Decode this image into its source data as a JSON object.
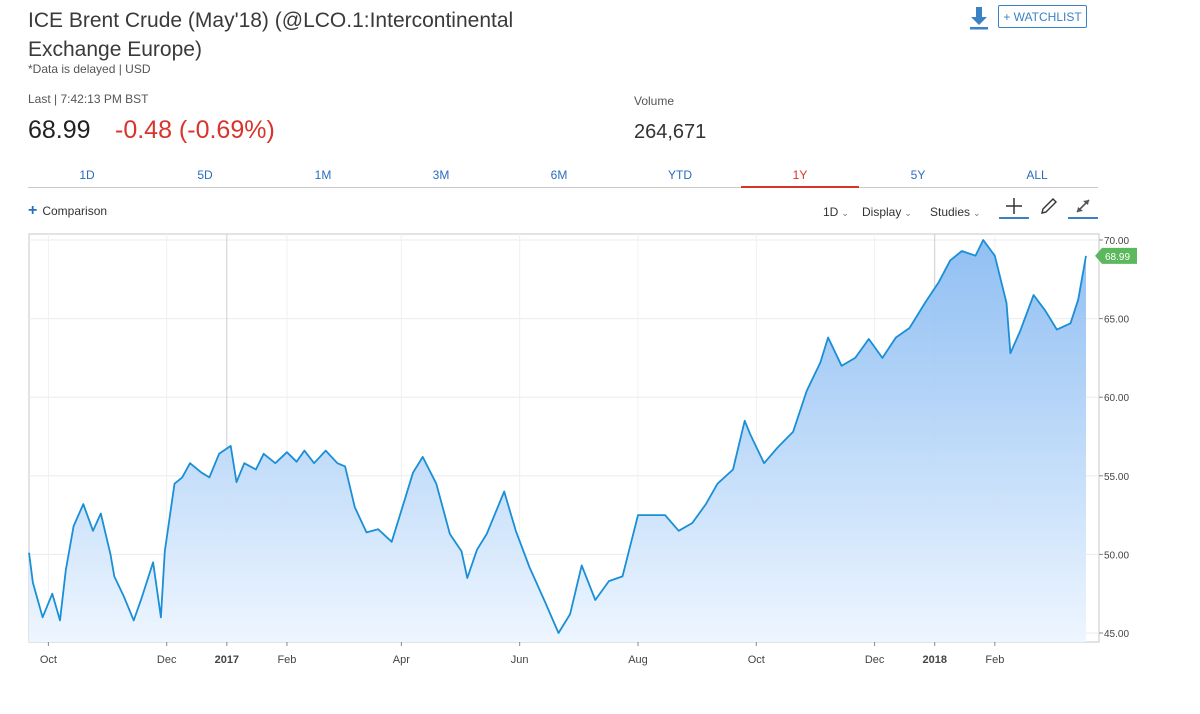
{
  "header": {
    "title": "ICE Brent Crude (May'18) (@LCO.1:Intercontinental Exchange Europe)",
    "delayed_note": "*Data is delayed | USD",
    "last_label": "Last | 7:42:13 PM BST",
    "last_price": "68.99",
    "change": "-0.48 (-0.69%)",
    "volume_label": "Volume",
    "volume_value": "264,671",
    "watchlist_label": "+ WATCHLIST",
    "download_icon": "download-arrow-icon"
  },
  "tabs": [
    {
      "label": "1D",
      "active": false
    },
    {
      "label": "5D",
      "active": false
    },
    {
      "label": "1M",
      "active": false
    },
    {
      "label": "3M",
      "active": false
    },
    {
      "label": "6M",
      "active": false
    },
    {
      "label": "YTD",
      "active": false
    },
    {
      "label": "1Y",
      "active": true
    },
    {
      "label": "5Y",
      "active": false
    },
    {
      "label": "ALL",
      "active": false
    }
  ],
  "toolbar": {
    "comparison_label": "Comparison",
    "interval_label": "1D",
    "display_label": "Display",
    "studies_label": "Studies",
    "icons": [
      "crosshair-icon",
      "pencil-icon",
      "expand-icon"
    ]
  },
  "colors": {
    "line": "#1a8fd6",
    "fill_top": "#8bbcf2",
    "fill_bottom": "#eef6ff",
    "negative": "#d9342b",
    "accent": "#2a6ebb",
    "price_tag": "#5cb85c"
  },
  "chart_data": {
    "type": "area",
    "series": [
      {
        "x": [
          "2016-09-21",
          "2016-09-23",
          "2016-09-28",
          "2016-10-03",
          "2016-10-07",
          "2016-10-10",
          "2016-10-14",
          "2016-10-19",
          "2016-10-24",
          "2016-10-28",
          "2016-11-02",
          "2016-11-04",
          "2016-11-09",
          "2016-11-14",
          "2016-11-18",
          "2016-11-24",
          "2016-11-28",
          "2016-11-30",
          "2016-12-05",
          "2016-12-09",
          "2016-12-13",
          "2016-12-19",
          "2016-12-23",
          "2016-12-28",
          "2017-01-03",
          "2017-01-06",
          "2017-01-10",
          "2017-01-16",
          "2017-01-20",
          "2017-01-26",
          "2017-02-01",
          "2017-02-06",
          "2017-02-10",
          "2017-02-15",
          "2017-02-21",
          "2017-02-27",
          "2017-03-03",
          "2017-03-08",
          "2017-03-14",
          "2017-03-20",
          "2017-03-27",
          "2017-04-03",
          "2017-04-07",
          "2017-04-12",
          "2017-04-19",
          "2017-04-26",
          "2017-05-02",
          "2017-05-05",
          "2017-05-10",
          "2017-05-15",
          "2017-05-24",
          "2017-05-30",
          "2017-06-06",
          "2017-06-14",
          "2017-06-21",
          "2017-06-27",
          "2017-07-03",
          "2017-07-10",
          "2017-07-17",
          "2017-07-24",
          "2017-08-01",
          "2017-08-07",
          "2017-08-15",
          "2017-08-22",
          "2017-08-29",
          "2017-09-05",
          "2017-09-11",
          "2017-09-19",
          "2017-09-25",
          "2017-09-28",
          "2017-10-05",
          "2017-10-12",
          "2017-10-20",
          "2017-10-27",
          "2017-11-03",
          "2017-11-07",
          "2017-11-14",
          "2017-11-21",
          "2017-11-28",
          "2017-12-05",
          "2017-12-12",
          "2017-12-19",
          "2017-12-27",
          "2018-01-03",
          "2018-01-09",
          "2018-01-15",
          "2018-01-22",
          "2018-01-26",
          "2018-02-01",
          "2018-02-07",
          "2018-02-09",
          "2018-02-14",
          "2018-02-21",
          "2018-02-27",
          "2018-03-05",
          "2018-03-12",
          "2018-03-16",
          "2018-03-20"
        ],
        "values": [
          50.1,
          48.2,
          46.0,
          47.5,
          45.8,
          49.0,
          51.8,
          53.2,
          51.5,
          52.6,
          50.0,
          48.6,
          47.3,
          45.8,
          47.2,
          49.5,
          46.0,
          50.2,
          54.5,
          54.9,
          55.8,
          55.2,
          54.9,
          56.4,
          56.9,
          54.6,
          55.8,
          55.4,
          56.4,
          55.8,
          56.5,
          55.9,
          56.6,
          55.8,
          56.6,
          55.8,
          55.6,
          53.0,
          51.4,
          51.6,
          50.8,
          53.6,
          55.2,
          56.2,
          54.5,
          51.3,
          50.2,
          48.5,
          50.3,
          51.3,
          54.0,
          51.5,
          49.2,
          47.0,
          45.0,
          46.2,
          49.3,
          47.1,
          48.3,
          48.6,
          52.5,
          52.5,
          52.5,
          51.5,
          52.0,
          53.2,
          54.5,
          55.4,
          58.5,
          57.6,
          55.8,
          56.8,
          57.8,
          60.4,
          62.2,
          63.8,
          62.0,
          62.5,
          63.7,
          62.5,
          63.8,
          64.4,
          66.0,
          67.3,
          68.7,
          69.3,
          69.0,
          70.0,
          69.0,
          66.0,
          62.8,
          64.2,
          66.5,
          65.5,
          64.3,
          64.7,
          66.2,
          68.99
        ]
      }
    ],
    "x_tick_labels": [
      {
        "date": "2016-10-01",
        "label": "Oct"
      },
      {
        "date": "2016-12-01",
        "label": "Dec"
      },
      {
        "date": "2017-01-01",
        "label": "2017"
      },
      {
        "date": "2017-02-01",
        "label": "Feb"
      },
      {
        "date": "2017-04-01",
        "label": "Apr"
      },
      {
        "date": "2017-06-01",
        "label": "Jun"
      },
      {
        "date": "2017-08-01",
        "label": "Aug"
      },
      {
        "date": "2017-10-01",
        "label": "Oct"
      },
      {
        "date": "2017-12-01",
        "label": "Dec"
      },
      {
        "date": "2018-01-01",
        "label": "2018"
      },
      {
        "date": "2018-02-01",
        "label": "Feb"
      }
    ],
    "y_ticks": [
      "70.00",
      "65.00",
      "60.00",
      "55.00",
      "50.00",
      "45.00"
    ],
    "ylim": [
      44.5,
      70.5
    ],
    "xlim": [
      "2016-09-21",
      "2018-03-20"
    ],
    "last_value_label": "68.99",
    "grid": true
  }
}
